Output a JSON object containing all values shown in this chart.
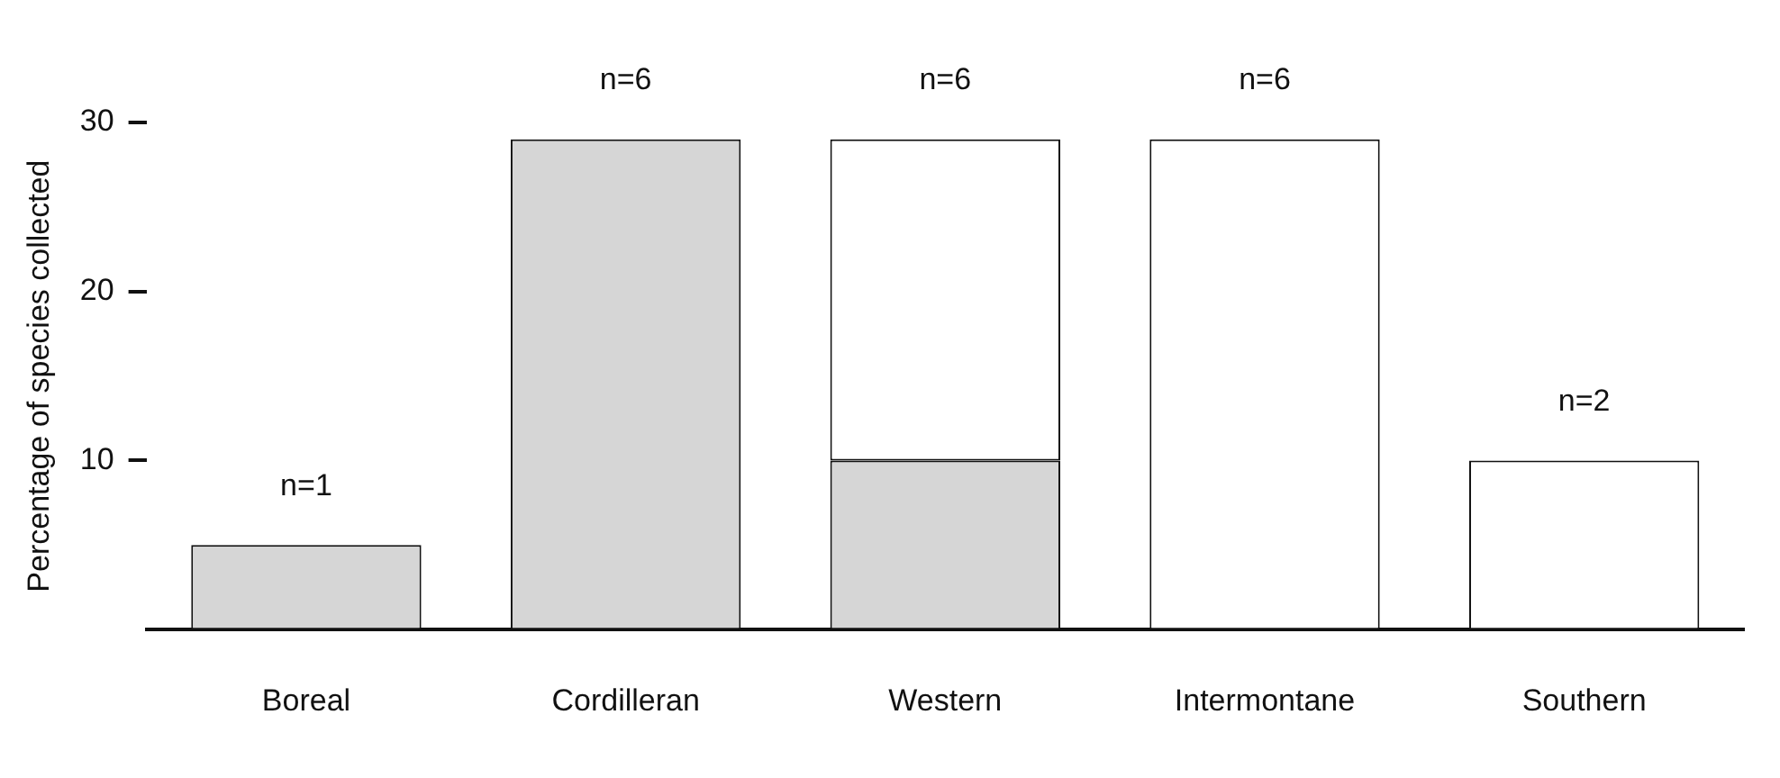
{
  "chart_data": {
    "type": "bar",
    "stacked": true,
    "ylabel": "Percentage of species collected",
    "categories": [
      "Boreal",
      "Cordilleran",
      "Western",
      "Intermontane",
      "Southern"
    ],
    "series": [
      {
        "color": "#d6d6d6",
        "values": [
          5,
          29,
          10,
          null,
          null
        ]
      },
      {
        "color": "#ffffff",
        "values": [
          null,
          null,
          19,
          29,
          10
        ]
      }
    ],
    "annotations": [
      {
        "text": "n=1",
        "x": "Boreal",
        "y": 5
      },
      {
        "text": "n=6",
        "x": "Cordilleran",
        "y": 29
      },
      {
        "text": "n=6",
        "x": "Western",
        "y": 29
      },
      {
        "text": "n=6",
        "x": "Intermontane",
        "y": 29
      },
      {
        "text": "n=2",
        "x": "Southern",
        "y": 10
      }
    ],
    "ylim": [
      0,
      30
    ],
    "yticks": [
      10,
      20,
      30
    ],
    "grid": false,
    "legend": false
  }
}
